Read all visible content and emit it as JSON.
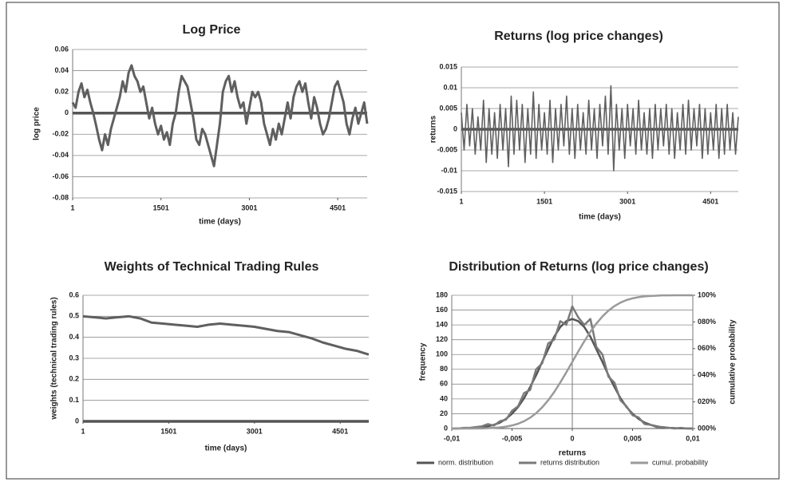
{
  "chart_data": [
    {
      "type": "line",
      "title": "Log Price",
      "y_label": "log price",
      "x_label": "time (days)",
      "color": "#5f5f5f",
      "xlim": [
        1,
        5001
      ],
      "xticks": [
        1,
        1501,
        3001,
        4501
      ],
      "ylim": [
        -0.08,
        0.06
      ],
      "yticks": [
        -0.08,
        -0.06,
        -0.04,
        -0.02,
        0,
        0.02,
        0.04,
        0.06
      ],
      "grid": true,
      "x": [
        1,
        51,
        101,
        151,
        201,
        251,
        301,
        351,
        401,
        451,
        501,
        551,
        601,
        651,
        701,
        751,
        801,
        851,
        901,
        951,
        1001,
        1051,
        1101,
        1151,
        1201,
        1251,
        1301,
        1351,
        1401,
        1451,
        1501,
        1551,
        1601,
        1651,
        1701,
        1751,
        1801,
        1851,
        1901,
        1951,
        2001,
        2051,
        2101,
        2151,
        2201,
        2251,
        2301,
        2351,
        2401,
        2451,
        2501,
        2551,
        2601,
        2651,
        2701,
        2751,
        2801,
        2851,
        2901,
        2951,
        3001,
        3051,
        3101,
        3151,
        3201,
        3251,
        3301,
        3351,
        3401,
        3451,
        3501,
        3551,
        3601,
        3651,
        3701,
        3751,
        3801,
        3851,
        3901,
        3951,
        4001,
        4051,
        4101,
        4151,
        4201,
        4251,
        4301,
        4351,
        4401,
        4451,
        4501,
        4551,
        4601,
        4651,
        4701,
        4751,
        4801,
        4851,
        4901,
        4951,
        5001
      ],
      "values": [
        0.01,
        0.005,
        0.02,
        0.028,
        0.015,
        0.022,
        0.01,
        0.0,
        -0.012,
        -0.025,
        -0.035,
        -0.02,
        -0.03,
        -0.015,
        -0.005,
        0.005,
        0.015,
        0.03,
        0.02,
        0.038,
        0.045,
        0.035,
        0.03,
        0.02,
        0.025,
        0.01,
        -0.005,
        0.005,
        -0.01,
        -0.02,
        -0.012,
        -0.025,
        -0.018,
        -0.03,
        -0.01,
        0.0,
        0.02,
        0.035,
        0.03,
        0.025,
        0.01,
        -0.005,
        -0.025,
        -0.03,
        -0.015,
        -0.02,
        -0.03,
        -0.04,
        -0.05,
        -0.03,
        -0.01,
        0.02,
        0.03,
        0.035,
        0.02,
        0.03,
        0.015,
        0.005,
        0.01,
        -0.01,
        0.005,
        0.02,
        0.015,
        0.02,
        0.01,
        -0.01,
        -0.02,
        -0.03,
        -0.015,
        -0.025,
        -0.01,
        -0.02,
        -0.005,
        0.01,
        -0.005,
        0.015,
        0.025,
        0.03,
        0.02,
        0.028,
        0.01,
        -0.005,
        0.015,
        0.005,
        -0.01,
        -0.02,
        -0.015,
        -0.005,
        0.01,
        0.025,
        0.03,
        0.02,
        0.01,
        -0.01,
        -0.02,
        -0.005,
        0.005,
        -0.01,
        0.0,
        0.01,
        -0.01
      ]
    },
    {
      "type": "line",
      "title": "Returns (log price changes)",
      "y_label": "returns",
      "x_label": "time (days)",
      "color": "#5f5f5f",
      "xlim": [
        1,
        5001
      ],
      "xticks": [
        1,
        1501,
        3001,
        4501
      ],
      "ylim": [
        -0.015,
        0.015
      ],
      "yticks": [
        -0.015,
        -0.01,
        -0.005,
        0,
        0.005,
        0.01,
        0.015
      ],
      "grid": true,
      "x": [
        1,
        51,
        101,
        151,
        201,
        251,
        301,
        351,
        401,
        451,
        501,
        551,
        601,
        651,
        701,
        751,
        801,
        851,
        901,
        951,
        1001,
        1051,
        1101,
        1151,
        1201,
        1251,
        1301,
        1351,
        1401,
        1451,
        1501,
        1551,
        1601,
        1651,
        1701,
        1751,
        1801,
        1851,
        1901,
        1951,
        2001,
        2051,
        2101,
        2151,
        2201,
        2251,
        2301,
        2351,
        2401,
        2451,
        2501,
        2551,
        2601,
        2651,
        2701,
        2751,
        2801,
        2851,
        2901,
        2951,
        3001,
        3051,
        3101,
        3151,
        3201,
        3251,
        3301,
        3351,
        3401,
        3451,
        3501,
        3551,
        3601,
        3651,
        3701,
        3751,
        3801,
        3851,
        3901,
        3951,
        4001,
        4051,
        4101,
        4151,
        4201,
        4251,
        4301,
        4351,
        4401,
        4451,
        4501,
        4551,
        4601,
        4651,
        4701,
        4751,
        4801,
        4851,
        4901,
        4951,
        5001
      ],
      "values": [
        0.004,
        -0.005,
        0.006,
        -0.004,
        0.005,
        -0.006,
        0.003,
        -0.005,
        0.007,
        -0.008,
        0.005,
        -0.006,
        0.004,
        -0.007,
        0.006,
        -0.005,
        0.005,
        -0.009,
        0.008,
        -0.006,
        0.007,
        -0.005,
        0.006,
        -0.008,
        0.005,
        -0.006,
        0.009,
        -0.007,
        0.006,
        -0.005,
        0.004,
        -0.006,
        0.007,
        -0.008,
        0.005,
        -0.005,
        0.006,
        -0.004,
        0.008,
        -0.006,
        0.005,
        -0.007,
        0.006,
        -0.005,
        0.004,
        -0.006,
        0.007,
        -0.005,
        0.005,
        -0.007,
        0.006,
        -0.004,
        0.008,
        -0.006,
        0.0105,
        -0.01,
        0.006,
        -0.005,
        0.005,
        -0.007,
        0.006,
        -0.004,
        0.005,
        -0.006,
        0.007,
        -0.005,
        0.004,
        -0.006,
        0.005,
        -0.007,
        0.006,
        -0.005,
        0.005,
        -0.004,
        0.006,
        -0.006,
        0.005,
        -0.007,
        0.004,
        -0.005,
        0.006,
        -0.006,
        0.007,
        -0.005,
        0.005,
        -0.004,
        0.006,
        -0.007,
        0.005,
        -0.006,
        0.004,
        -0.005,
        0.006,
        -0.007,
        0.005,
        -0.006,
        0.006,
        -0.005,
        0.004,
        -0.006,
        0.003
      ]
    },
    {
      "type": "line",
      "title": "Weights of Technical Trading Rules",
      "y_label": "weights (technical trading rules)",
      "x_label": "time (days)",
      "color": "#5f5f5f",
      "xlim": [
        1,
        5001
      ],
      "xticks": [
        1,
        1501,
        3001,
        4501
      ],
      "ylim": [
        0,
        0.6
      ],
      "yticks": [
        0,
        0.1,
        0.2,
        0.3,
        0.4,
        0.5,
        0.6
      ],
      "grid": true,
      "x": [
        1,
        201,
        401,
        601,
        801,
        1001,
        1201,
        1401,
        1601,
        1801,
        2001,
        2201,
        2401,
        2601,
        2801,
        3001,
        3201,
        3401,
        3601,
        3801,
        4001,
        4201,
        4401,
        4601,
        4801,
        5001
      ],
      "values": [
        0.5,
        0.495,
        0.49,
        0.495,
        0.5,
        0.49,
        0.47,
        0.465,
        0.46,
        0.455,
        0.45,
        0.46,
        0.465,
        0.46,
        0.455,
        0.45,
        0.44,
        0.43,
        0.425,
        0.41,
        0.395,
        0.375,
        0.36,
        0.345,
        0.335,
        0.318
      ]
    },
    {
      "type": "line",
      "title": "Distribution of Returns (log price changes)",
      "y_label": "frequency",
      "y2_label": "cumulative probability",
      "x_label": "returns",
      "xlim": [
        -0.01,
        0.01
      ],
      "xticks": [
        {
          "value": -0.01,
          "label": "-0,01"
        },
        {
          "value": -0.005,
          "label": "-0,005"
        },
        0,
        {
          "value": 0.005,
          "label": "0,005"
        },
        {
          "value": 0.01,
          "label": "0,01"
        }
      ],
      "ylim": [
        0,
        180
      ],
      "yticks": [
        0,
        20,
        40,
        60,
        80,
        100,
        120,
        140,
        160,
        180
      ],
      "grid": true,
      "y2lim": [
        0,
        100
      ],
      "y2ticks": [
        {
          "value": 0,
          "label": "000%"
        },
        {
          "value": 20,
          "label": "020%"
        },
        {
          "value": 40,
          "label": "040%"
        },
        {
          "value": 60,
          "label": "060%"
        },
        {
          "value": 80,
          "label": "080%"
        },
        {
          "value": 100,
          "label": "100%"
        }
      ],
      "legend": "bottom",
      "x": [
        -0.01,
        -0.0095,
        -0.009,
        -0.0085,
        -0.008,
        -0.0075,
        -0.007,
        -0.0065,
        -0.006,
        -0.0055,
        -0.005,
        -0.0045,
        -0.004,
        -0.0035,
        -0.003,
        -0.0025,
        -0.002,
        -0.0015,
        -0.001,
        -0.0005,
        0,
        0.0005,
        0.001,
        0.0015,
        0.002,
        0.0025,
        0.003,
        0.0035,
        0.004,
        0.0045,
        0.005,
        0.0055,
        0.006,
        0.0065,
        0.007,
        0.0075,
        0.008,
        0.0085,
        0.009,
        0.0095,
        0.01
      ],
      "series": [
        {
          "name": "norm. distribution",
          "color": "#555555",
          "values": [
            0,
            0.1,
            0.2,
            0.5,
            0.9,
            1.6,
            3,
            5,
            8,
            13,
            20,
            29,
            41,
            56,
            72,
            90,
            107,
            124,
            137,
            145,
            148,
            145,
            137,
            124,
            107,
            90,
            72,
            56,
            41,
            29,
            20,
            13,
            8,
            5,
            3,
            1.6,
            0.9,
            0.5,
            0.2,
            0.1,
            0
          ]
        },
        {
          "name": "returns distribution",
          "color": "#7a7a7a",
          "values": [
            0,
            0,
            1,
            1,
            2,
            3,
            6,
            4,
            10,
            12,
            24,
            30,
            48,
            52,
            80,
            88,
            115,
            120,
            145,
            140,
            165,
            150,
            140,
            148,
            110,
            100,
            70,
            62,
            38,
            30,
            18,
            15,
            6,
            5,
            2,
            2,
            1,
            0,
            1,
            0,
            0
          ]
        },
        {
          "name": "cumul. probability",
          "color": "#9a9a9a",
          "axis": "y2",
          "values": [
            0,
            0,
            0,
            0,
            0.1,
            0.1,
            0.3,
            0.5,
            0.8,
            1.4,
            2.3,
            3.6,
            5.5,
            8.1,
            11.5,
            15.9,
            21.2,
            27.4,
            34.5,
            42.1,
            50,
            57.9,
            65.5,
            72.6,
            78.8,
            84.1,
            88.5,
            91.9,
            94.5,
            96.4,
            97.7,
            98.6,
            99.2,
            99.5,
            99.7,
            99.9,
            99.9,
            100,
            100,
            100,
            100
          ]
        }
      ]
    }
  ]
}
